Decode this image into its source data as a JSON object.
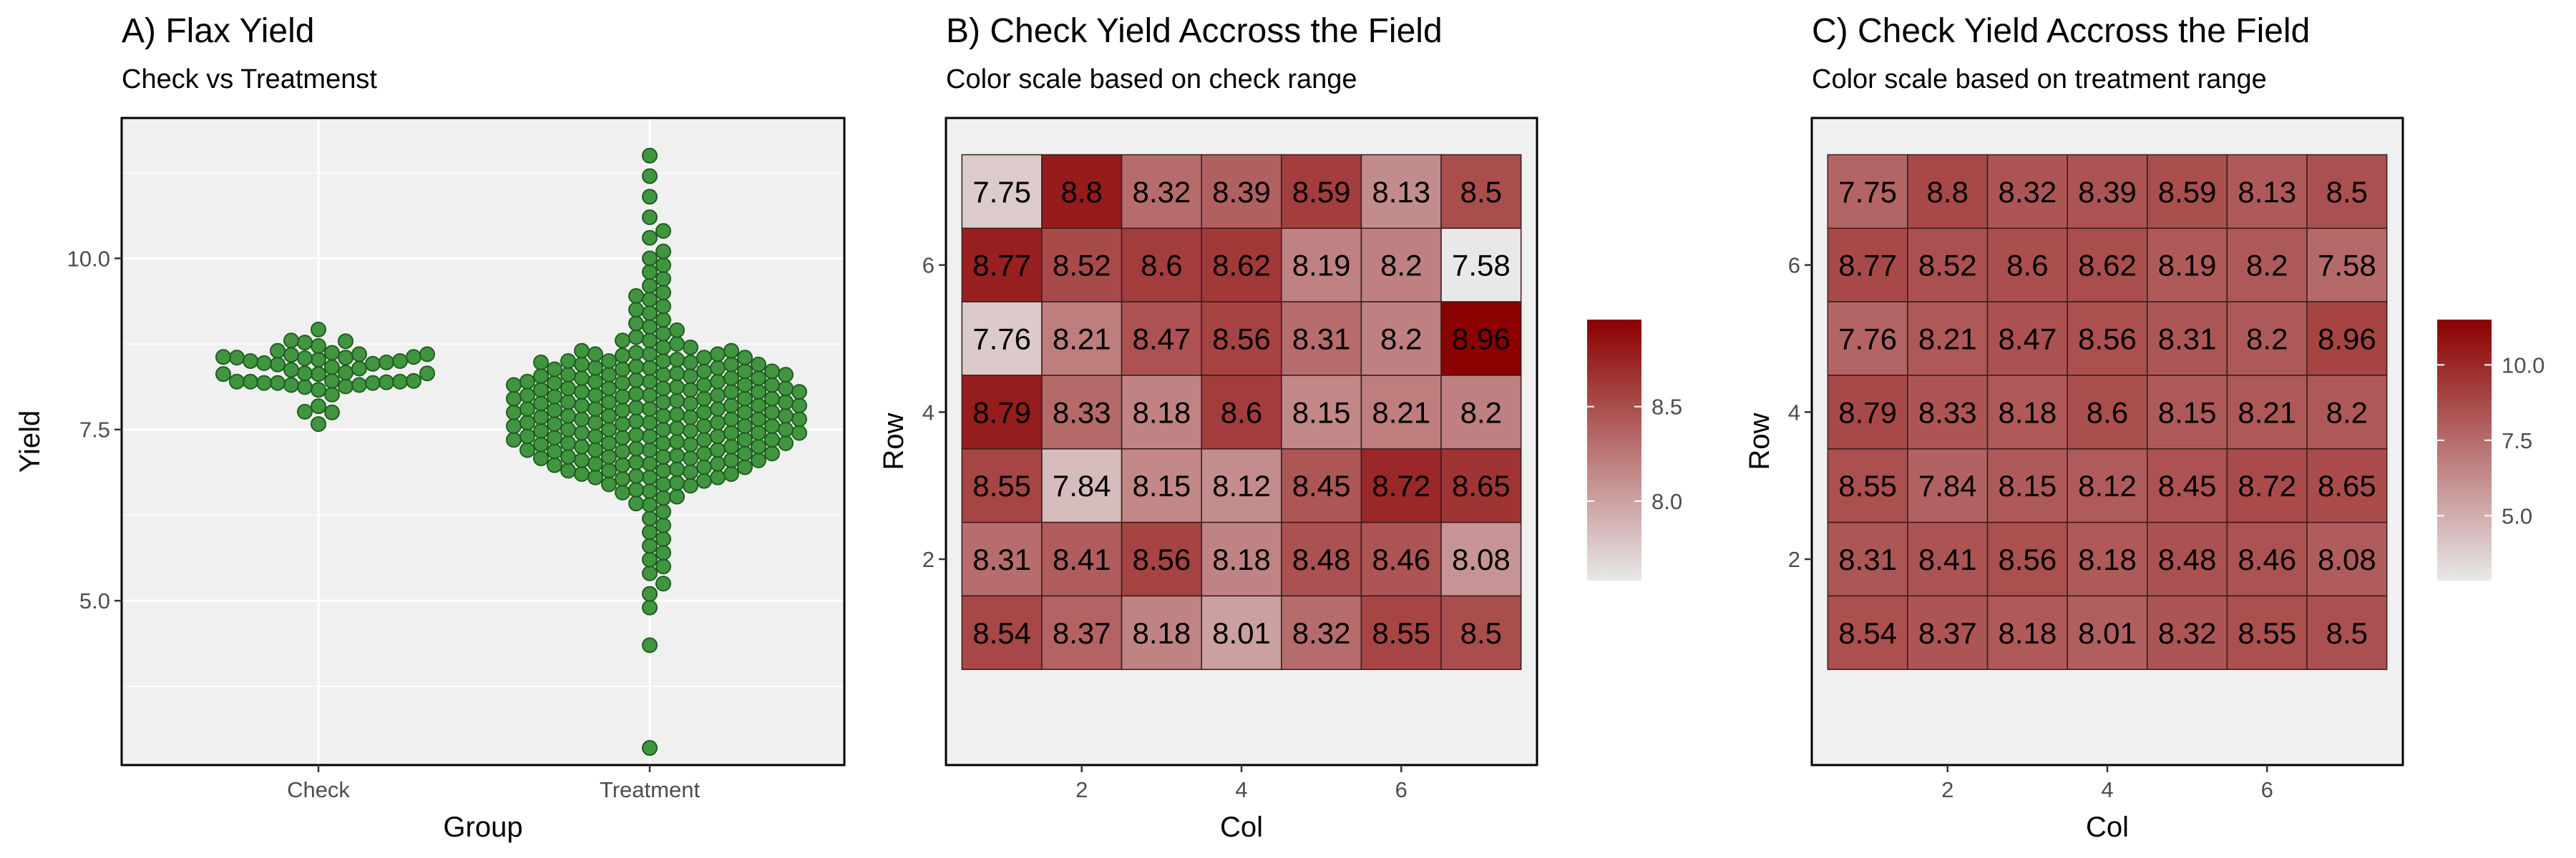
{
  "colors": {
    "panel_bg": "#f0f0f0",
    "grid": "#ffffff",
    "point_fill": "#2e8b2e",
    "point_stroke": "#1e5e1e",
    "scale_low": "#e8e8e8",
    "scale_high": "#8b0000",
    "tile_border": "#3a1a1a",
    "text": "#000000",
    "tick_text": "#4d4d4d"
  },
  "chart_data": [
    {
      "type": "scatter",
      "title": "A) Flax Yield",
      "subtitle": "Check vs Treatmenst",
      "xlabel": "Group",
      "ylabel": "Yield",
      "categories": [
        "Check",
        "Treatment"
      ],
      "y_ticks": [
        5.0,
        7.5,
        10.0
      ],
      "y_tick_labels": [
        "5.0",
        "7.5",
        "10.0"
      ],
      "ylim": [
        2.6,
        12.05
      ],
      "grid": true,
      "series": [
        {
          "values": [
            7.75,
            8.8,
            8.32,
            8.39,
            8.59,
            8.13,
            8.5,
            8.77,
            8.52,
            8.6,
            8.62,
            8.19,
            8.2,
            7.58,
            7.76,
            8.21,
            8.47,
            8.56,
            8.31,
            8.2,
            8.96,
            8.79,
            8.33,
            8.18,
            8.6,
            8.15,
            8.21,
            8.2,
            8.55,
            7.84,
            8.15,
            8.12,
            8.45,
            8.72,
            8.65,
            8.31,
            8.41,
            8.56,
            8.18,
            8.48,
            8.46,
            8.08,
            8.54,
            8.37,
            8.18,
            8.01,
            8.32,
            8.55,
            8.5
          ]
        },
        {
          "values": [
            11.5,
            11.2,
            10.9,
            10.6,
            10.4,
            10.3,
            10.1,
            10.0,
            9.9,
            9.8,
            9.7,
            9.6,
            9.5,
            9.45,
            9.4,
            9.3,
            9.25,
            9.2,
            9.1,
            9.05,
            9.0,
            8.95,
            8.9,
            8.85,
            8.8,
            8.8,
            8.75,
            8.7,
            8.7,
            8.65,
            8.6,
            8.6,
            8.55,
            8.5,
            8.5,
            8.45,
            8.4,
            8.4,
            8.35,
            8.3,
            8.3,
            8.25,
            8.2,
            8.2,
            8.15,
            8.1,
            8.1,
            8.05,
            8.0,
            8.0,
            7.95,
            7.9,
            7.9,
            7.85,
            7.8,
            7.8,
            7.75,
            7.7,
            7.7,
            7.65,
            7.6,
            7.6,
            7.55,
            7.5,
            7.5,
            7.45,
            7.4,
            7.4,
            7.35,
            7.3,
            7.3,
            7.25,
            7.2,
            7.2,
            7.15,
            7.1,
            7.1,
            7.05,
            7.0,
            7.0,
            6.95,
            6.9,
            6.9,
            6.85,
            6.8,
            6.8,
            6.75,
            6.7,
            6.6,
            6.5,
            6.4,
            6.3,
            6.2,
            6.1,
            6.0,
            5.9,
            5.8,
            5.7,
            5.6,
            5.5,
            5.4,
            5.25,
            5.1,
            4.9,
            4.35,
            2.85,
            8.6,
            8.5,
            8.4,
            8.3,
            8.2,
            8.1,
            8.0,
            7.9,
            7.8,
            7.7,
            7.6,
            7.5,
            7.4,
            7.3,
            7.2,
            7.1,
            7.0,
            6.9,
            6.8,
            6.7,
            8.55,
            8.45,
            8.35,
            8.25,
            8.15,
            8.05,
            7.95,
            7.85,
            7.75,
            7.65,
            7.55,
            7.45,
            7.35,
            7.25,
            7.15,
            7.05,
            6.95,
            6.85,
            8.62,
            8.48,
            8.38,
            8.28,
            8.18,
            8.08,
            7.98,
            7.88,
            7.78,
            7.68,
            7.58,
            7.48,
            7.38,
            7.28,
            7.18,
            7.08,
            6.98,
            6.88,
            6.78,
            6.68,
            6.58,
            8.65,
            8.52,
            8.42,
            8.32,
            8.22,
            8.12,
            8.02,
            7.92,
            7.82,
            7.72,
            7.62,
            7.52,
            7.42,
            7.32,
            7.22,
            7.12,
            7.02,
            6.92,
            6.82,
            6.72,
            6.62,
            6.52,
            6.42,
            8.58,
            8.48,
            8.38,
            8.28,
            8.18,
            8.08,
            7.98,
            7.88,
            7.78,
            7.68,
            7.58,
            7.48,
            7.38,
            7.28,
            7.18,
            7.08,
            6.98,
            8.45,
            8.35,
            8.25,
            8.15,
            8.05,
            7.95,
            7.85,
            7.75,
            7.65,
            7.55,
            7.45,
            7.35,
            7.25,
            7.15,
            7.05,
            8.3,
            8.2,
            8.1,
            8.0,
            7.9,
            7.8,
            7.7,
            7.6,
            7.5,
            7.4,
            7.3,
            7.2,
            8.15,
            8.05,
            7.95,
            7.85,
            7.75,
            7.65,
            7.55,
            7.45,
            7.35
          ]
        }
      ]
    },
    {
      "type": "heatmap",
      "title": "B) Check Yield Accross the Field",
      "subtitle": "Color scale based on check range",
      "xlabel": "Col",
      "ylabel": "Row",
      "x_ticks": [
        2,
        4,
        6
      ],
      "y_ticks": [
        2,
        4,
        6
      ],
      "xlim": [
        0.3,
        7.7
      ],
      "ylim": [
        -0.8,
        8.0
      ],
      "grid": true,
      "rows": [
        7,
        6,
        5,
        4,
        3,
        2,
        1
      ],
      "cols": [
        1,
        2,
        3,
        4,
        5,
        6,
        7
      ],
      "values": [
        [
          "7.75",
          "8.8",
          "8.32",
          "8.39",
          "8.59",
          "8.13",
          "8.5"
        ],
        [
          "8.77",
          "8.52",
          "8.6",
          "8.62",
          "8.19",
          "8.2",
          "7.58"
        ],
        [
          "7.76",
          "8.21",
          "8.47",
          "8.56",
          "8.31",
          "8.2",
          "8.96"
        ],
        [
          "8.79",
          "8.33",
          "8.18",
          "8.6",
          "8.15",
          "8.21",
          "8.2"
        ],
        [
          "8.55",
          "7.84",
          "8.15",
          "8.12",
          "8.45",
          "8.72",
          "8.65"
        ],
        [
          "8.31",
          "8.41",
          "8.56",
          "8.18",
          "8.48",
          "8.46",
          "8.08"
        ],
        [
          "8.54",
          "8.37",
          "8.18",
          "8.01",
          "8.32",
          "8.55",
          "8.5"
        ]
      ],
      "color_range": [
        7.58,
        8.96
      ],
      "legend": {
        "position": "right",
        "ticks": [
          8.0,
          8.5
        ],
        "tick_labels": [
          "8.0",
          "8.5"
        ]
      }
    },
    {
      "type": "heatmap",
      "title": "C) Check Yield Accross the Field",
      "subtitle": "Color scale based on treatment range",
      "xlabel": "Col",
      "ylabel": "Row",
      "x_ticks": [
        2,
        4,
        6
      ],
      "y_ticks": [
        2,
        4,
        6
      ],
      "xlim": [
        0.3,
        7.7
      ],
      "ylim": [
        -0.8,
        8.0
      ],
      "grid": true,
      "rows": [
        7,
        6,
        5,
        4,
        3,
        2,
        1
      ],
      "cols": [
        1,
        2,
        3,
        4,
        5,
        6,
        7
      ],
      "values": [
        [
          "7.75",
          "8.8",
          "8.32",
          "8.39",
          "8.59",
          "8.13",
          "8.5"
        ],
        [
          "8.77",
          "8.52",
          "8.6",
          "8.62",
          "8.19",
          "8.2",
          "7.58"
        ],
        [
          "7.76",
          "8.21",
          "8.47",
          "8.56",
          "8.31",
          "8.2",
          "8.96"
        ],
        [
          "8.79",
          "8.33",
          "8.18",
          "8.6",
          "8.15",
          "8.21",
          "8.2"
        ],
        [
          "8.55",
          "7.84",
          "8.15",
          "8.12",
          "8.45",
          "8.72",
          "8.65"
        ],
        [
          "8.31",
          "8.41",
          "8.56",
          "8.18",
          "8.48",
          "8.46",
          "8.08"
        ],
        [
          "8.54",
          "8.37",
          "8.18",
          "8.01",
          "8.32",
          "8.55",
          "8.5"
        ]
      ],
      "color_range": [
        2.85,
        11.5
      ],
      "legend": {
        "position": "right",
        "ticks": [
          5.0,
          7.5,
          10.0
        ],
        "tick_labels": [
          "5.0",
          "7.5",
          "10.0"
        ]
      }
    }
  ]
}
